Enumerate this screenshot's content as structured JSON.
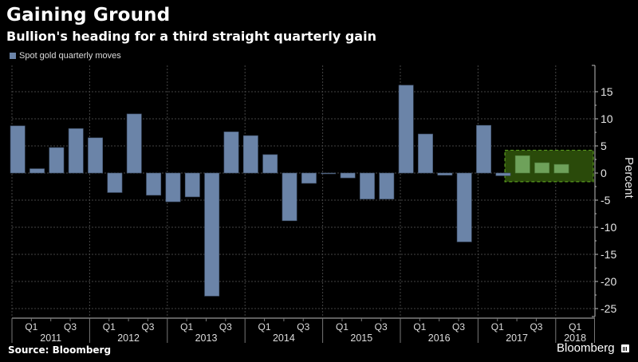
{
  "header": {
    "title": "Gaining Ground",
    "subtitle": "Bullion's heading for a third straight quarterly gain"
  },
  "footer": {
    "source": "Source: Bloomberg",
    "brand": "Bloomberg",
    "brand_icon": "bar-chart-icon"
  },
  "colors": {
    "background": "#000000",
    "bar": "#6b84a8",
    "highlight_bar": "#6ea15a",
    "highlight_box_fill": "#2a4a0a",
    "highlight_box_stroke": "#5a9a1e",
    "grid": "#444444",
    "axis": "#bbbbbb"
  },
  "chart_data": {
    "type": "bar",
    "title": "Gaining Ground",
    "subtitle": "Bullion's heading for a third straight quarterly gain",
    "legend": [
      {
        "label": "Spot gold quarterly moves",
        "color": "#6b84a8"
      }
    ],
    "legend_position": "top-left",
    "xlabel": "",
    "ylabel": "Percent",
    "ylim": [
      -27,
      19
    ],
    "yticks": [
      15,
      10,
      5,
      0,
      -5,
      -10,
      -15,
      -20,
      -25
    ],
    "ytick_labels": [
      "15",
      "10",
      "5",
      "0",
      "-5",
      "-10",
      "-15",
      "-20",
      "-25"
    ],
    "y_axis_side": "right",
    "grid": true,
    "categories": [
      "2011 Q1",
      "2011 Q2",
      "2011 Q3",
      "2011 Q4",
      "2012 Q1",
      "2012 Q2",
      "2012 Q3",
      "2012 Q4",
      "2013 Q1",
      "2013 Q2",
      "2013 Q3",
      "2013 Q4",
      "2014 Q1",
      "2014 Q2",
      "2014 Q3",
      "2014 Q4",
      "2015 Q1",
      "2015 Q2",
      "2015 Q3",
      "2015 Q4",
      "2016 Q1",
      "2016 Q2",
      "2016 Q3",
      "2016 Q4",
      "2017 Q1",
      "2017 Q2",
      "2017 Q3",
      "2017 Q4",
      "2018 Q1"
    ],
    "series": [
      {
        "name": "Spot gold quarterly moves",
        "values": [
          8.7,
          0.8,
          4.7,
          8.2,
          6.5,
          -3.6,
          10.9,
          -4.1,
          -5.3,
          -4.4,
          -22.7,
          7.6,
          6.9,
          3.4,
          -8.8,
          -1.9,
          -0.1,
          -0.9,
          -4.8,
          -4.8,
          16.2,
          7.2,
          -0.4,
          -12.7,
          8.8,
          -0.5,
          3.2,
          1.9,
          1.6
        ]
      }
    ],
    "highlighted_range": {
      "from": "2017 Q3",
      "to": "2018 Q1",
      "annotation": "third straight quarterly gain"
    },
    "x_quarter_labels": [
      "Q1",
      "Q3"
    ],
    "x_years": [
      "2011",
      "2012",
      "2013",
      "2014",
      "2015",
      "2016",
      "2017",
      "2018"
    ]
  }
}
